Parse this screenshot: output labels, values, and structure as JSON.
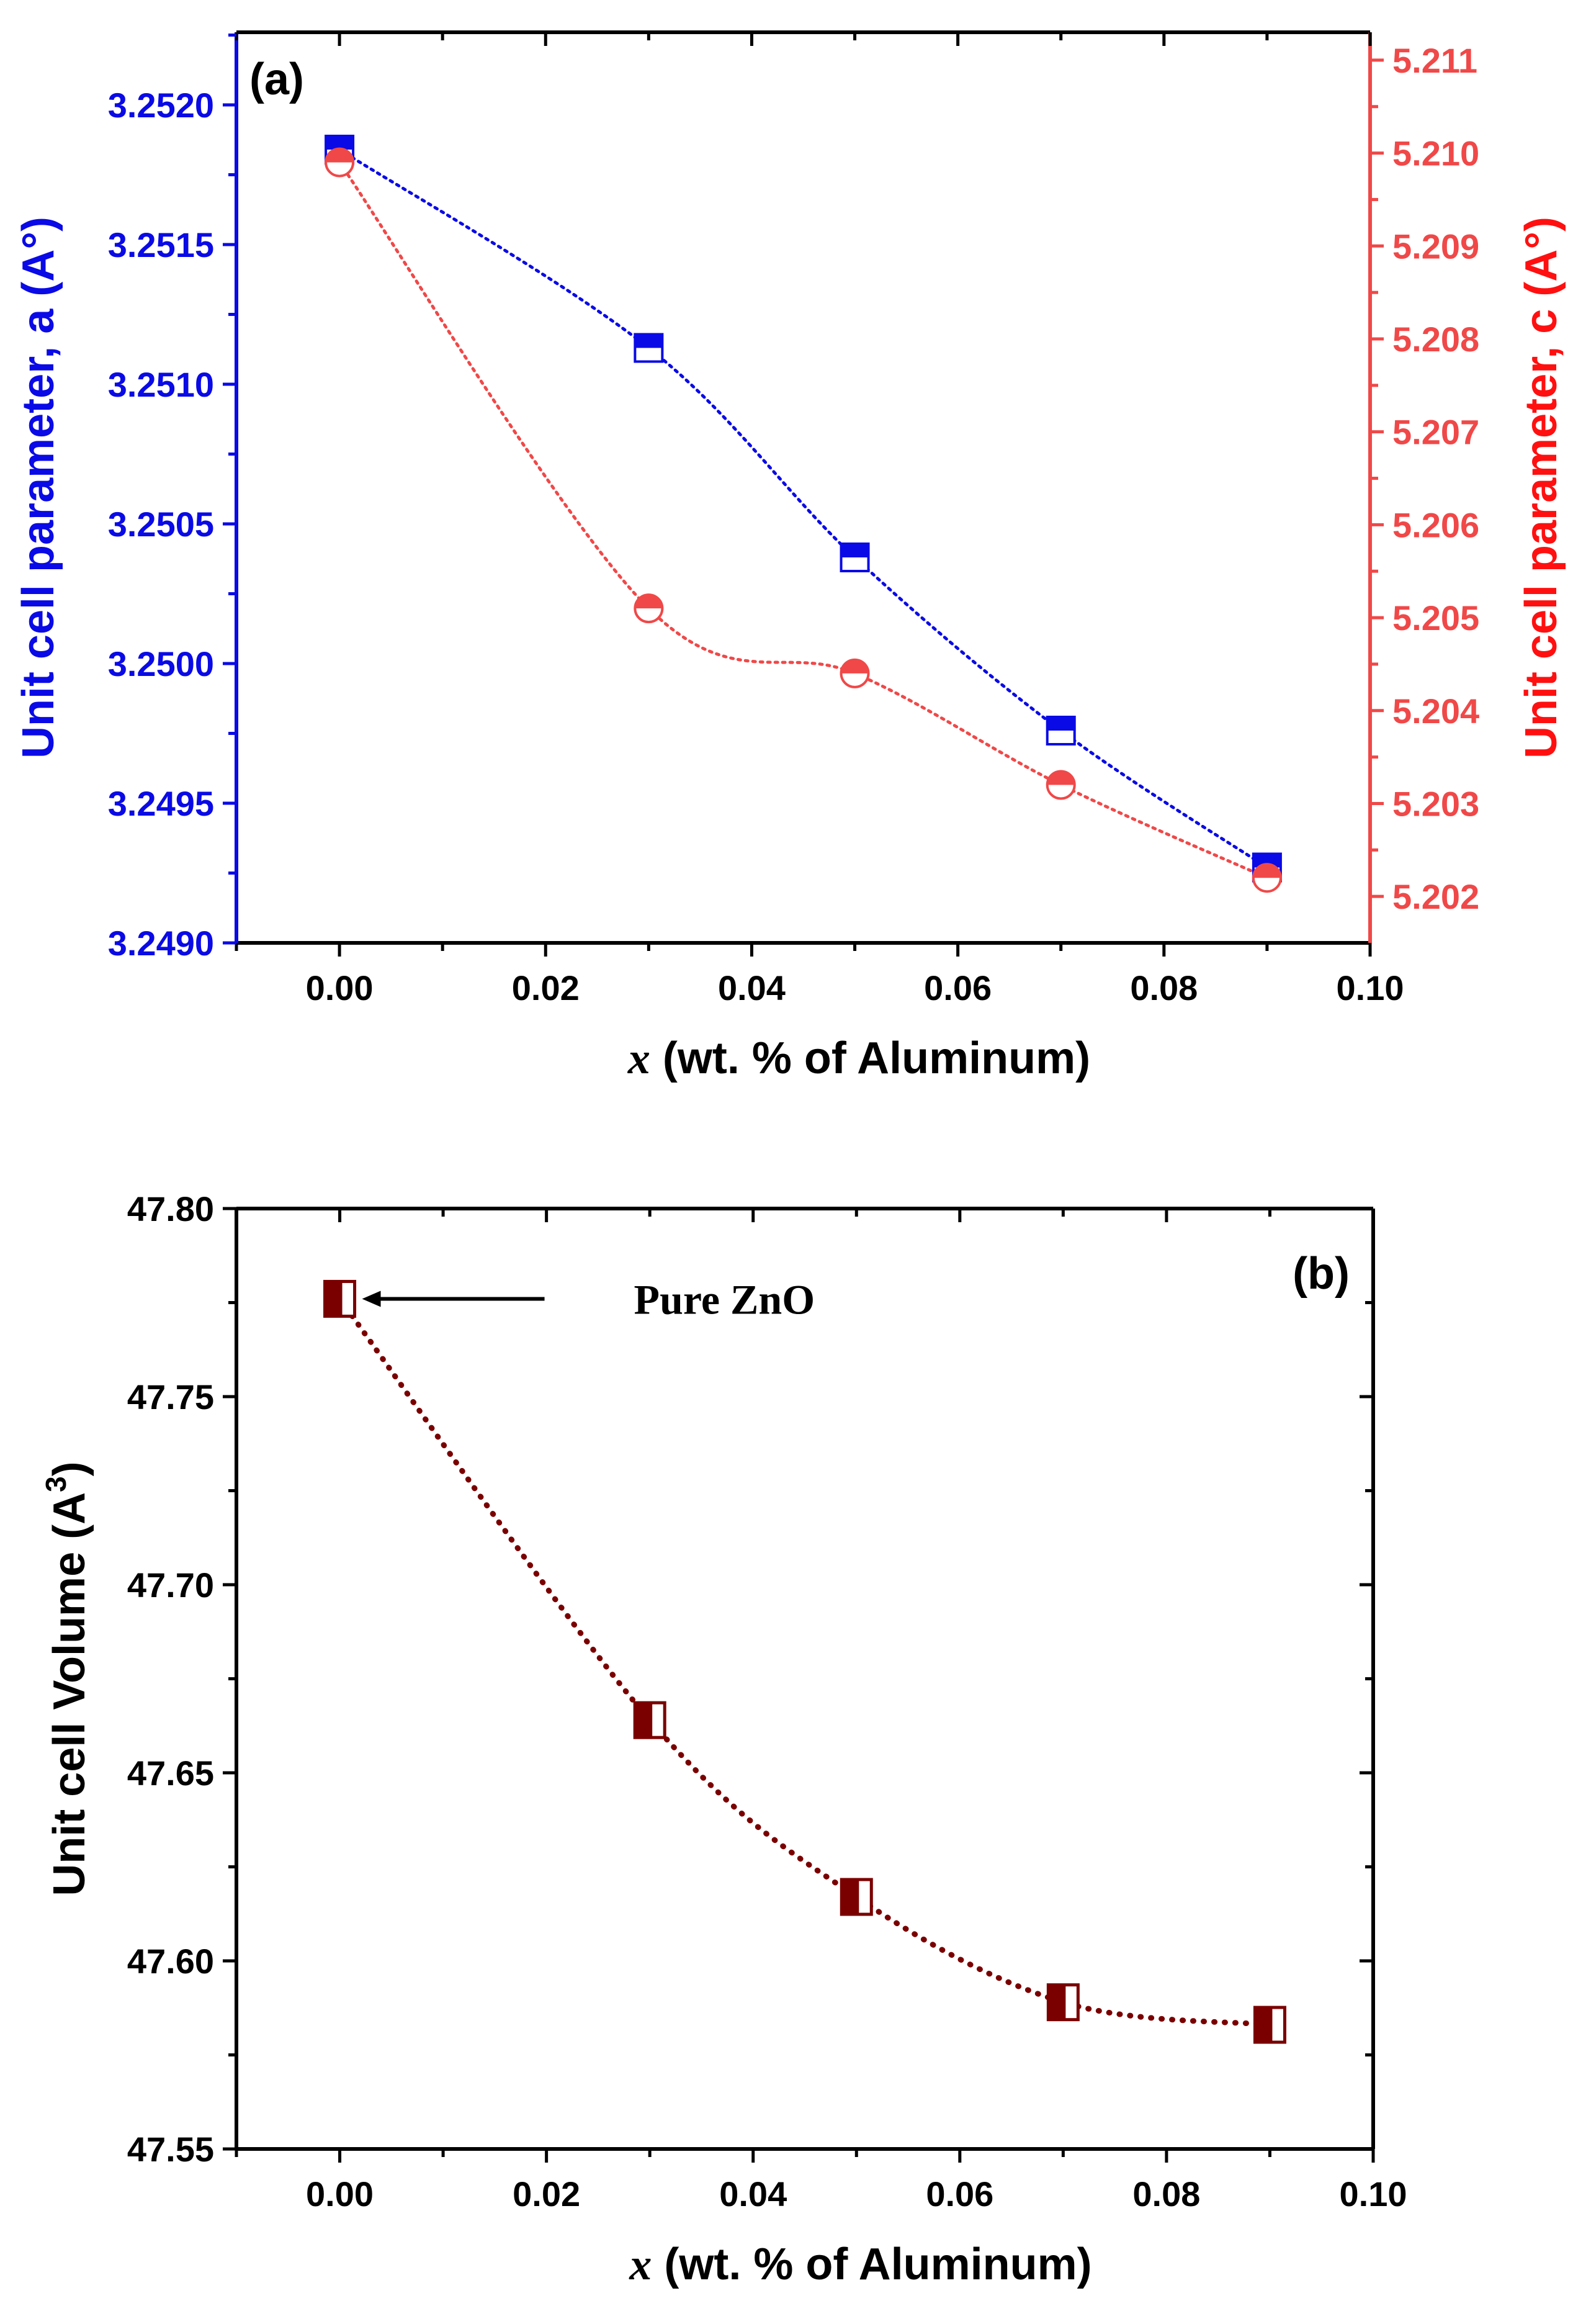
{
  "chart_data": [
    {
      "type": "line",
      "panel_label": "(a)",
      "xlabel_var": "x",
      "xlabel_rest": " (wt. % of Aluminum)",
      "ylabel": "Unit cell parameter,  a (A°)",
      "y2label": "Unit cell parameter,  c (A°)",
      "xlim": [
        -0.01,
        0.1
      ],
      "ylim": [
        3.249,
        3.25226
      ],
      "y2lim": [
        5.2015,
        5.2113
      ],
      "xticks": [
        0.0,
        0.02,
        0.04,
        0.06,
        0.08,
        0.1
      ],
      "xtick_labels": [
        "0.00",
        "0.02",
        "0.04",
        "0.06",
        "0.08",
        "0.10"
      ],
      "yticks": [
        3.249,
        3.2495,
        3.25,
        3.2505,
        3.251,
        3.2515,
        3.252
      ],
      "ytick_labels": [
        "3.2490",
        "3.2495",
        "3.2500",
        "3.2505",
        "3.2510",
        "3.2515",
        "3.2520"
      ],
      "y2ticks": [
        5.202,
        5.203,
        5.204,
        5.205,
        5.206,
        5.207,
        5.208,
        5.209,
        5.21,
        5.211
      ],
      "y2tick_labels": [
        "5.202",
        "5.203",
        "5.204",
        "5.205",
        "5.206",
        "5.207",
        "5.208",
        "5.209",
        "5.210",
        "5.211"
      ],
      "grid": false,
      "series": [
        {
          "name": "a",
          "axis": "left",
          "marker": "half-filled-square",
          "color": "#0a0ae6",
          "x": [
            0.0,
            0.03,
            0.05,
            0.07,
            0.09
          ],
          "values": [
            3.25184,
            3.25113,
            3.25038,
            3.24976,
            3.24927
          ]
        },
        {
          "name": "c",
          "axis": "right",
          "marker": "half-filled-circle",
          "color": "#f04848",
          "x": [
            0.0,
            0.03,
            0.05,
            0.07,
            0.09
          ],
          "values": [
            5.2099,
            5.2051,
            5.2044,
            5.2032,
            5.2022
          ]
        }
      ],
      "colors": {
        "left_axis": "#0a0ae6",
        "right_axis": "#f04848",
        "right_label": "#ff1010"
      }
    },
    {
      "type": "line",
      "panel_label": "(b)",
      "xlabel_var": "x",
      "xlabel_rest": " (wt. % of Aluminum)",
      "ylabel": "Unit cell Volume (A",
      "ylabel_sup": "3",
      "ylabel_end": ")",
      "xlim": [
        -0.01,
        0.1
      ],
      "ylim": [
        47.55,
        47.8
      ],
      "xticks": [
        0.0,
        0.02,
        0.04,
        0.06,
        0.08,
        0.1
      ],
      "xtick_labels": [
        "0.00",
        "0.02",
        "0.04",
        "0.06",
        "0.08",
        "0.10"
      ],
      "yticks": [
        47.55,
        47.6,
        47.65,
        47.7,
        47.75,
        47.8
      ],
      "ytick_labels": [
        "47.55",
        "47.60",
        "47.65",
        "47.70",
        "47.75",
        "47.80"
      ],
      "grid": false,
      "annotation": "Pure ZnO",
      "series": [
        {
          "name": "Volume",
          "axis": "left",
          "marker": "half-filled-square-left",
          "color": "#7a0000",
          "x": [
            0.0,
            0.03,
            0.05,
            0.07,
            0.09
          ],
          "values": [
            47.776,
            47.664,
            47.617,
            47.589,
            47.583
          ]
        }
      ]
    }
  ]
}
